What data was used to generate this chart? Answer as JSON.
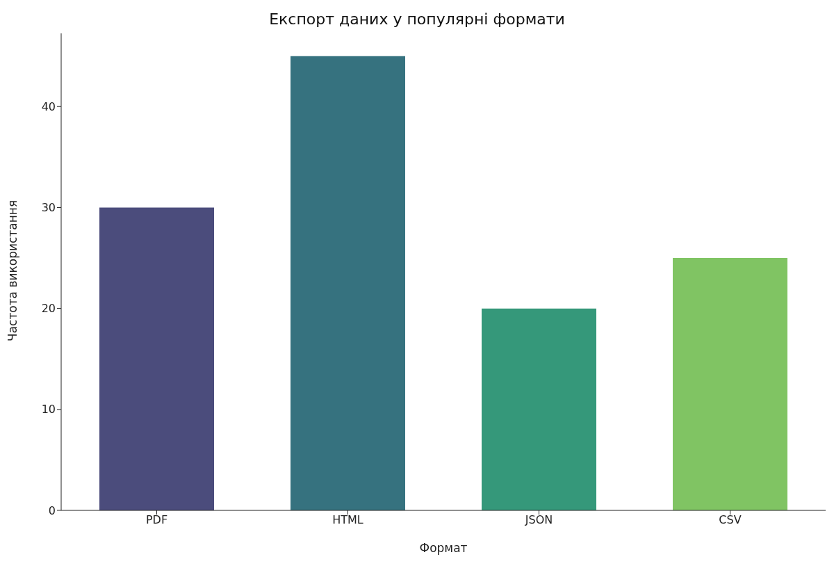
{
  "chart_data": {
    "type": "bar",
    "title": "Експорт даних у популярні формати",
    "xlabel": "Формат",
    "ylabel": "Частота використання",
    "categories": [
      "PDF",
      "HTML",
      "JSON",
      "CSV"
    ],
    "values": [
      30,
      45,
      20,
      25
    ],
    "colors": [
      "#4b4c7c",
      "#36727f",
      "#35987a",
      "#80c463"
    ],
    "ylim": [
      0,
      47.25
    ],
    "yticks": [
      0,
      10,
      20,
      30,
      40
    ],
    "grid": false,
    "legend": false
  }
}
